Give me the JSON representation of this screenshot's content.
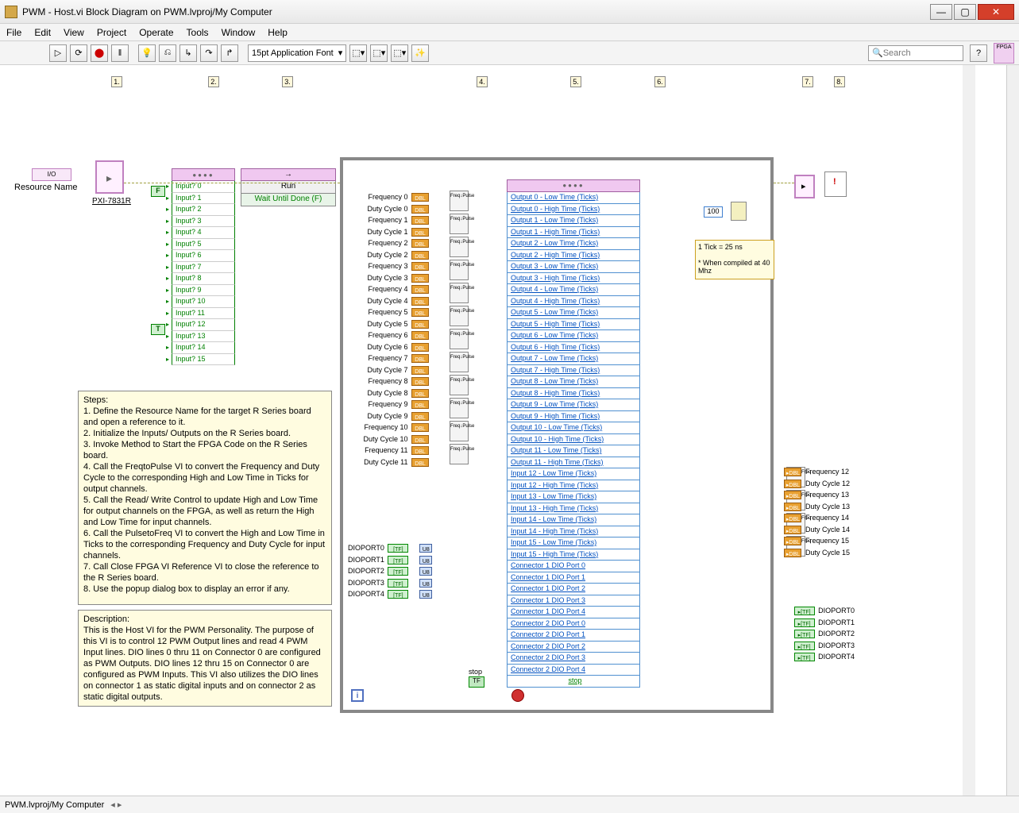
{
  "window": {
    "title": "PWM - Host.vi Block Diagram on PWM.lvproj/My Computer",
    "min": "—",
    "max": "▢",
    "close": "✕"
  },
  "menu": {
    "items": [
      "File",
      "Edit",
      "View",
      "Project",
      "Operate",
      "Tools",
      "Window",
      "Help"
    ]
  },
  "toolbar": {
    "font": "15pt Application Font",
    "search_placeholder": "Search",
    "fpga_badge": "FPGA"
  },
  "steps": {
    "1": "1.",
    "2": "2.",
    "3": "3.",
    "4": "4.",
    "5": "5.",
    "6": "6.",
    "7": "7.",
    "8": "8."
  },
  "resource": {
    "const": "I/O",
    "label": "Resource Name",
    "node_label": "PXI-7831R"
  },
  "invoke": {
    "method": "Run",
    "arg": "Wait Until Done (F)"
  },
  "bool": {
    "F": "F",
    "T": "T"
  },
  "inputs": {
    "rows": [
      "Input? 0",
      "Input? 1",
      "Input? 2",
      "Input? 3",
      "Input? 4",
      "Input? 5",
      "Input? 6",
      "Input? 7",
      "Input? 8",
      "Input? 9",
      "Input? 10",
      "Input? 11",
      "Input? 12",
      "Input? 13",
      "Input? 14",
      "Input? 15"
    ]
  },
  "loop": {
    "wait_ms": "100",
    "tick_note": "1 Tick = 25 ns\n\n* When compiled at 40 Mhz",
    "stop_label": "stop",
    "stop_btn": "TF",
    "i": "i"
  },
  "freq_duty_left": [
    "Frequency 0",
    "Duty Cycle 0",
    "Frequency 1",
    "Duty Cycle 1",
    "Frequency 2",
    "Duty Cycle 2",
    "Frequency 3",
    "Duty Cycle 3",
    "Frequency 4",
    "Duty Cycle 4",
    "Frequency 5",
    "Duty Cycle 5",
    "Frequency 6",
    "Duty Cycle 6",
    "Frequency 7",
    "Duty Cycle 7",
    "Frequency 8",
    "Duty Cycle 8",
    "Frequency 9",
    "Duty Cycle 9",
    "Frequency 10",
    "Duty Cycle 10",
    "Frequency 11",
    "Duty Cycle 11"
  ],
  "rw_rows": [
    "Output 0 - Low Time (Ticks)",
    "Output 0 - High Time (Ticks)",
    "Output 1 - Low Time (Ticks)",
    "Output 1 - High Time (Ticks)",
    "Output 2 - Low Time (Ticks)",
    "Output 2 - High Time (Ticks)",
    "Output 3 - Low Time (Ticks)",
    "Output 3 - High Time (Ticks)",
    "Output 4 - Low Time (Ticks)",
    "Output 4 - High Time (Ticks)",
    "Output 5 - Low Time (Ticks)",
    "Output 5 - High Time (Ticks)",
    "Output 6 - Low Time (Ticks)",
    "Output 6 - High Time (Ticks)",
    "Output 7 - Low Time (Ticks)",
    "Output 7 - High Time (Ticks)",
    "Output 8 - Low Time (Ticks)",
    "Output 8 - High Time (Ticks)",
    "Output 9 - Low Time (Ticks)",
    "Output 9 - High Time (Ticks)",
    "Output 10 - Low Time (Ticks)",
    "Output 10 - High Time (Ticks)",
    "Output 11 - Low Time (Ticks)",
    "Output 11 - High Time (Ticks)",
    "Input 12 - Low Time (Ticks)",
    "Input 12 - High Time (Ticks)",
    "Input 13 - Low Time (Ticks)",
    "Input 13 - High Time (Ticks)",
    "Input 14 - Low Time (Ticks)",
    "Input 14 - High Time (Ticks)",
    "Input 15 - Low Time (Ticks)",
    "Input 15 - High Time (Ticks)",
    "Connector 1 DIO Port 0",
    "Connector 1 DIO Port 1",
    "Connector 1 DIO Port 2",
    "Connector 1 DIO Port 3",
    "Connector 1 DIO Port 4",
    "Connector 2 DIO Port 0",
    "Connector 2 DIO Port 1",
    "Connector 2 DIO Port 2",
    "Connector 2 DIO Port 3",
    "Connector 2 DIO Port 4",
    "stop"
  ],
  "freq_duty_right": [
    "Frequency 12",
    "Duty Cycle 12",
    "Frequency 13",
    "Duty Cycle 13",
    "Frequency 14",
    "Duty Cycle 14",
    "Frequency 15",
    "Duty Cycle 15"
  ],
  "dio_in": [
    "DIOPORT0",
    "DIOPORT1",
    "DIOPORT2",
    "DIOPORT3",
    "DIOPORT4"
  ],
  "dio_out": [
    "DIOPORT0",
    "DIOPORT1",
    "DIOPORT2",
    "DIOPORT3",
    "DIOPORT4"
  ],
  "tags": {
    "dbl": "DBL",
    "tf": "[TF]",
    "u8": "U8",
    "ftp": "Freq\n↓\nPulse",
    "ptf": "Pulse\n↓\nFreq"
  },
  "help_steps_title": "Steps:",
  "help_steps": "1.  Define the Resource Name for the target R Series board and open a reference to it.\n2.  Initialize the Inputs/ Outputs on the R Series board.\n3.  Invoke Method to Start the FPGA Code on the R Series board.\n4.  Call the FreqtoPulse VI to convert the Frequency and Duty Cycle to the corresponding High and Low Time in Ticks for output channels.\n5.  Call the Read/ Write Control to update High and Low Time for output channels on the FPGA, as well as return the High and Low Time for input channels.\n6.  Call the PulsetoFreq VI to convert the High and Low Time in Ticks to the corresponding Frequency and Duty Cycle for input channels.\n7.  Call Close FPGA VI Reference VI to close the reference to the R Series board.\n8.  Use the popup dialog box to display an error if any.",
  "help_desc_title": "Description:",
  "help_desc": "This is the Host VI for the PWM Personality.  The purpose of this VI is to control 12 PWM Output lines and read 4 PWM Input lines.  DIO lines 0 thru 11 on Connector 0 are configured as PWM Outputs.  DIO lines 12 thru 15 on Connector 0 are configured as PWM Inputs.  This VI also utilizes the DIO lines on connector 1 as static digital inputs and on connector 2 as static digital outputs.",
  "status": {
    "path": "PWM.lvproj/My Computer"
  },
  "colors": {
    "pink_header": "#f0c8f0",
    "pink_border": "#a060a0",
    "green": "#008000",
    "orange": "#e8a030",
    "blue_link": "#0050c0",
    "note_bg": "#fffce0",
    "loop_border": "#888888"
  }
}
